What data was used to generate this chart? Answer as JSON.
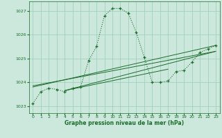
{
  "title": "Graphe pression niveau de la mer (hPa)",
  "plot_bg_color": "#cce8dc",
  "grid_color": "#99ccb8",
  "line_color": "#1a6b2a",
  "xlim": [
    -0.5,
    23.5
  ],
  "ylim": [
    1022.7,
    1027.4
  ],
  "xticks": [
    0,
    1,
    2,
    3,
    4,
    5,
    6,
    7,
    8,
    9,
    10,
    11,
    12,
    13,
    14,
    15,
    16,
    17,
    18,
    19,
    20,
    21,
    22,
    23
  ],
  "yticks": [
    1023,
    1024,
    1025,
    1026,
    1027
  ],
  "main_series": {
    "x": [
      0,
      1,
      2,
      3,
      4,
      5,
      6,
      7,
      8,
      9,
      10,
      11,
      12,
      13,
      14,
      15,
      16,
      17,
      18,
      19,
      20,
      21,
      22,
      23
    ],
    "y": [
      1023.1,
      1023.6,
      1023.75,
      1023.7,
      1023.6,
      1023.75,
      1023.8,
      1024.9,
      1025.5,
      1026.8,
      1027.1,
      1027.1,
      1026.9,
      1026.1,
      1025.05,
      1024.0,
      1024.0,
      1024.05,
      1024.45,
      1024.5,
      1024.85,
      1025.25,
      1025.4,
      1025.55
    ]
  },
  "trend_lines": [
    {
      "x": [
        0,
        23
      ],
      "y": [
        1023.8,
        1025.55
      ]
    },
    {
      "x": [
        0,
        23
      ],
      "y": [
        1023.85,
        1025.3
      ]
    },
    {
      "x": [
        4,
        23
      ],
      "y": [
        1023.65,
        1025.3
      ]
    },
    {
      "x": [
        4,
        17
      ],
      "y": [
        1023.65,
        1024.55
      ]
    }
  ]
}
